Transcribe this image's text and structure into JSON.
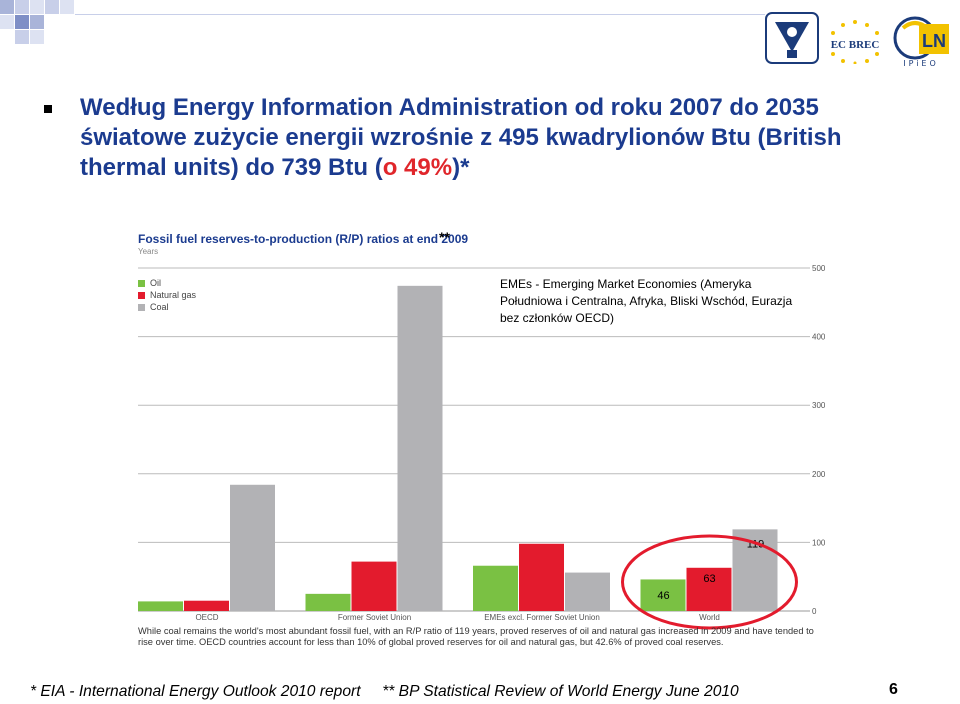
{
  "headline": {
    "part1": "Według Energy Information Administration od roku 2007 do 2035 światowe zużycie energii wzrośnie z  495 kwadrylionów Btu (British thermal units) do 739 Btu (",
    "highlight": "o 49%",
    "part2": ")*"
  },
  "colors": {
    "oil": "#7ac143",
    "gas": "#e31b2d",
    "coal": "#b2b2b5",
    "headline": "#1b3b8f",
    "highlight": "#e0262b",
    "circle": "#e31b2d"
  },
  "logos": {
    "center_logo": "EC BREC",
    "right_logo": "LN",
    "right_logo_caption": "IPiEO"
  },
  "emes_note": "EMEs - Emerging Market Economies (Ameryka Południowa i Centralna, Afryka, Bliski Wschód, Eurazja bez członków OECD)",
  "stars_marker": "**",
  "chart_data": {
    "type": "bar",
    "title": "Fossil fuel reserves-to-production (R/P) ratios at end 2009",
    "ylabel": "Years",
    "categories": [
      "OECD",
      "Former Soviet Union",
      "EMEs excl. Former Soviet Union",
      "World"
    ],
    "series": [
      {
        "name": "Oil",
        "values": [
          14,
          25,
          66,
          46
        ]
      },
      {
        "name": "Natural gas",
        "values": [
          15,
          72,
          98,
          63
        ]
      },
      {
        "name": "Coal",
        "values": [
          184,
          474,
          56,
          119
        ]
      }
    ],
    "ylim": [
      0,
      500
    ],
    "yticks": [
      0,
      100,
      200,
      300,
      400,
      500
    ],
    "data_labels": [
      "46",
      "63",
      "119"
    ],
    "legend_position": "top-left",
    "grid": true,
    "caption": "While coal remains the world's most abundant fossil fuel, with an R/P ratio of 119 years, proved reserves of oil and natural gas increased in 2009 and have tended to rise over time. OECD countries account for less than 10% of global proved reserves for oil and natural gas, but 42.6% of proved coal reserves."
  },
  "footnote": "* EIA - International Energy Outlook 2010 report     ** BP Statistical Review of World Energy June 2010",
  "page_number": "6"
}
